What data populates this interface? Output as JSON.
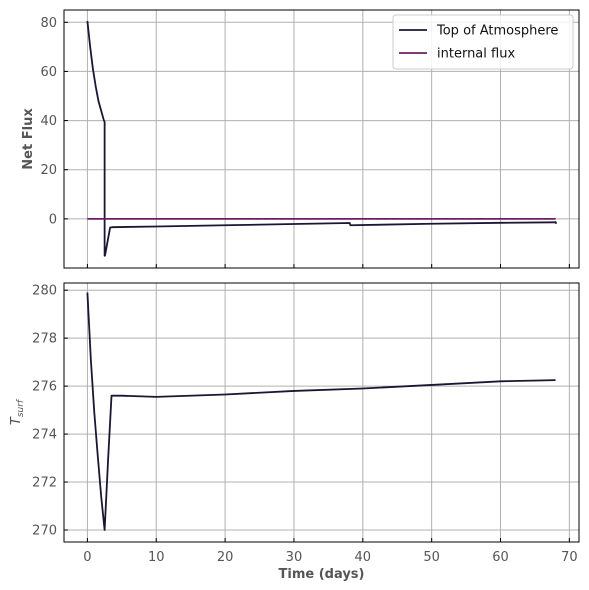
{
  "chart_data": [
    {
      "type": "line",
      "ylabel": "Net Flux",
      "xlim": [
        -3.4,
        71.4
      ],
      "ylim": [
        -20,
        85
      ],
      "yticks": [
        0,
        20,
        40,
        60,
        80
      ],
      "xticks": [
        0,
        10,
        20,
        30,
        40,
        50,
        60,
        70
      ],
      "show_x_tick_labels": false,
      "grid": true,
      "legend_position": "top-right",
      "series": [
        {
          "name": "Top of Atmosphere",
          "color": "#1c1533",
          "x": [
            0,
            0.4,
            0.8,
            1.2,
            1.6,
            2.0,
            2.4,
            2.5,
            2.5,
            2.55,
            3.3,
            3.6,
            10,
            20,
            30,
            38.1,
            38.2,
            38.3,
            50,
            60,
            67.9,
            68.0,
            68.1
          ],
          "y": [
            80.5,
            70,
            61,
            54,
            48,
            44,
            40,
            39.5,
            -15,
            -15,
            -3.5,
            -3.4,
            -3.1,
            -2.6,
            -2.1,
            -1.7,
            -2.6,
            -2.6,
            -2.0,
            -1.6,
            -1.4,
            -1.3,
            -2.0
          ]
        },
        {
          "name": "internal flux",
          "color": "#6b1f63",
          "x": [
            0,
            68
          ],
          "y": [
            0,
            0
          ]
        }
      ]
    },
    {
      "type": "line",
      "xlabel": "Time (days)",
      "ylabel": "T_surf",
      "ylabel_main": "T",
      "ylabel_sub": "surf",
      "xlim": [
        -3.4,
        71.4
      ],
      "ylim": [
        269.5,
        280.3
      ],
      "yticks": [
        270,
        272,
        274,
        276,
        278,
        280
      ],
      "xticks": [
        0,
        10,
        20,
        30,
        40,
        50,
        60,
        70
      ],
      "grid": true,
      "series": [
        {
          "color": "#1c1533",
          "x": [
            0,
            0.5,
            1.0,
            1.5,
            2.0,
            2.5,
            3.0,
            3.5,
            5,
            10,
            20,
            30,
            40,
            50,
            60,
            68
          ],
          "y": [
            279.9,
            277.1,
            274.9,
            273.1,
            271.4,
            270.0,
            272.9,
            275.6,
            275.6,
            275.55,
            275.65,
            275.8,
            275.9,
            276.05,
            276.2,
            276.25
          ]
        }
      ]
    }
  ]
}
